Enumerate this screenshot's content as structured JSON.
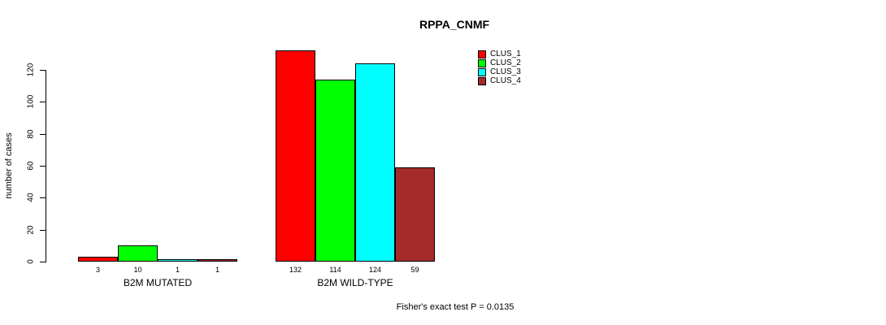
{
  "title": "RPPA_CNMF",
  "footer": "Fisher's exact test P = 0.0135",
  "colors": {
    "background": "#FFFFFF",
    "axis": "#000000",
    "text": "#000000",
    "clus_1": "#FF0000",
    "clus_2": "#00FF00",
    "clus_3": "#00FFFF",
    "clus_4": "#A52A2A"
  },
  "legend": {
    "items": [
      {
        "label": "CLUS_1",
        "color": "#FF0000"
      },
      {
        "label": "CLUS_2",
        "color": "#00FF00"
      },
      {
        "label": "CLUS_3",
        "color": "#00FFFF"
      },
      {
        "label": "CLUS_4",
        "color": "#A52A2A"
      }
    ]
  },
  "chart_data": {
    "type": "bar",
    "title": "RPPA_CNMF",
    "xlabel": "",
    "ylabel": "number of cases",
    "categories": [
      "B2M MUTATED",
      "B2M WILD-TYPE"
    ],
    "series": [
      {
        "name": "CLUS_1",
        "color": "#FF0000",
        "values": [
          3,
          132
        ]
      },
      {
        "name": "CLUS_2",
        "color": "#00FF00",
        "values": [
          10,
          114
        ]
      },
      {
        "name": "CLUS_3",
        "color": "#00FFFF",
        "values": [
          1,
          124
        ]
      },
      {
        "name": "CLUS_4",
        "color": "#A52A2A",
        "values": [
          1,
          59
        ]
      }
    ],
    "bar_value_labels": [
      [
        3,
        10,
        1,
        1
      ],
      [
        132,
        114,
        124,
        59
      ]
    ],
    "yticks": [
      0,
      20,
      40,
      60,
      80,
      100,
      120
    ],
    "ylim": [
      0,
      135
    ],
    "grid": false,
    "legend_position": "top-right",
    "annotation": "Fisher's exact test P = 0.0135"
  }
}
